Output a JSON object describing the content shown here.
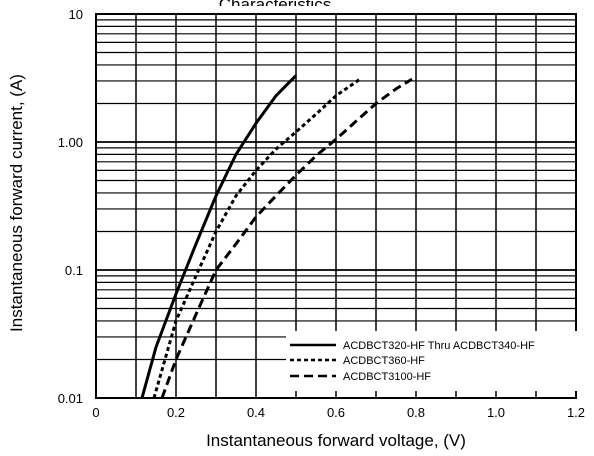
{
  "chart_data": {
    "type": "line",
    "xlabel": "Instantaneous forward voltage, (V)",
    "ylabel": "Instantaneous forward current, (A)",
    "xlim": [
      0,
      1.2
    ],
    "ylim": [
      0.01,
      10
    ],
    "y_scale": "log",
    "grid": true,
    "legend_position": "bottom-right",
    "x_ticks": [
      "0",
      "0.2",
      "0.4",
      "0.6",
      "0.8",
      "1.0",
      "1.2"
    ],
    "y_ticks": [
      "0.01",
      "0.1",
      "1.00",
      "10"
    ],
    "x_tick_values": [
      0,
      0.2,
      0.4,
      0.6,
      0.8,
      1.0,
      1.2
    ],
    "y_tick_values": [
      0.01,
      0.1,
      1,
      10
    ],
    "series": [
      {
        "name": "ACDBCT320-HF Thru ACDBCT340-HF",
        "style": "solid",
        "x": [
          0.115,
          0.15,
          0.2,
          0.25,
          0.3,
          0.35,
          0.4,
          0.45,
          0.5
        ],
        "y": [
          0.01,
          0.025,
          0.065,
          0.16,
          0.38,
          0.8,
          1.4,
          2.3,
          3.3
        ]
      },
      {
        "name": "ACDBCT360-HF",
        "style": "dotted",
        "x": [
          0.145,
          0.2,
          0.25,
          0.3,
          0.35,
          0.4,
          0.45,
          0.5,
          0.55,
          0.6,
          0.66
        ],
        "y": [
          0.01,
          0.04,
          0.09,
          0.2,
          0.38,
          0.6,
          0.88,
          1.2,
          1.65,
          2.3,
          3.1
        ]
      },
      {
        "name": "ACDBCT3100-HF",
        "style": "dashed",
        "x": [
          0.165,
          0.2,
          0.25,
          0.3,
          0.35,
          0.4,
          0.45,
          0.5,
          0.55,
          0.6,
          0.65,
          0.7,
          0.75,
          0.79
        ],
        "y": [
          0.01,
          0.02,
          0.045,
          0.1,
          0.16,
          0.26,
          0.38,
          0.55,
          0.78,
          1.05,
          1.45,
          2.0,
          2.6,
          3.1
        ]
      }
    ]
  },
  "top_text": "Characteristics"
}
